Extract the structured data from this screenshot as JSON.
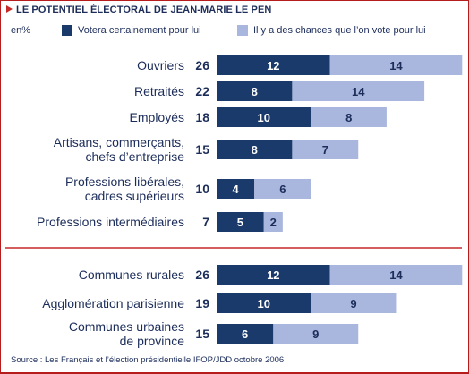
{
  "header": {
    "title": "LE POTENTIEL ÉLECTORAL DE JEAN-MARIE LE PEN"
  },
  "legend": {
    "unit": "en%",
    "items": [
      {
        "label": "Votera certainement pour lui",
        "color": "#1a3a6b"
      },
      {
        "label": "Il y a des chances que l’on vote pour lui",
        "color": "#a9b6dd"
      }
    ]
  },
  "colors": {
    "certain": "#1a3a6b",
    "possible": "#a9b6dd",
    "separator": "#c62828",
    "text": "#1c2d5a"
  },
  "chart_data": {
    "type": "bar",
    "orientation": "horizontal",
    "stacked": true,
    "unit": "%",
    "groups": [
      {
        "rows": [
          {
            "label": [
              "Ouvriers"
            ],
            "total": 26,
            "certain": 12,
            "possible": 14
          },
          {
            "label": [
              "Retraités"
            ],
            "total": 22,
            "certain": 8,
            "possible": 14
          },
          {
            "label": [
              "Employés"
            ],
            "total": 18,
            "certain": 10,
            "possible": 8
          },
          {
            "label": [
              "Artisans, commerçants,",
              "chefs d’entreprise"
            ],
            "total": 15,
            "certain": 8,
            "possible": 7
          },
          {
            "label": [
              "Professions libérales,",
              "cadres supérieurs"
            ],
            "total": 10,
            "certain": 4,
            "possible": 6
          },
          {
            "label": [
              "Professions intermédiaires"
            ],
            "total": 7,
            "certain": 5,
            "possible": 2
          }
        ]
      },
      {
        "rows": [
          {
            "label": [
              "Communes rurales"
            ],
            "total": 26,
            "certain": 12,
            "possible": 14
          },
          {
            "label": [
              "Agglomération parisienne"
            ],
            "total": 19,
            "certain": 10,
            "possible": 9
          },
          {
            "label": [
              "Communes urbaines",
              "de province"
            ],
            "total": 15,
            "certain": 6,
            "possible": 9
          }
        ]
      }
    ]
  },
  "footer": {
    "source": "Source : Les Français et l’élection présidentielle IFOP/JDD octobre 2006"
  }
}
